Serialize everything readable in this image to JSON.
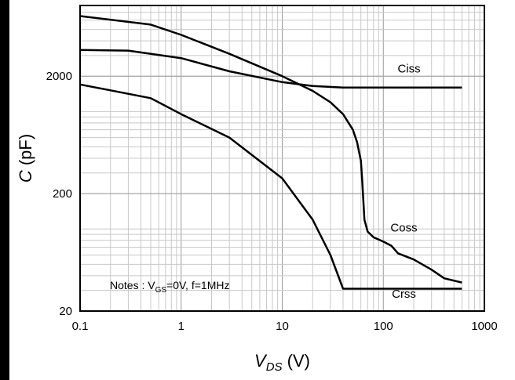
{
  "chart_data": {
    "type": "line",
    "x_scale": "log",
    "y_scale": "log",
    "xlim": [
      0.1,
      1000
    ],
    "ylim": [
      20,
      8000
    ],
    "grid": true,
    "x_ticks": [
      {
        "value": 0.1,
        "label": "0.1"
      },
      {
        "value": 1,
        "label": "1"
      },
      {
        "value": 10,
        "label": "10"
      },
      {
        "value": 100,
        "label": "100"
      },
      {
        "value": 1000,
        "label": "1000"
      }
    ],
    "y_ticks": [
      {
        "value": 20,
        "label": "20"
      },
      {
        "value": 200,
        "label": "200"
      },
      {
        "value": 2000,
        "label": "2000"
      }
    ],
    "xlabel": {
      "main": "V",
      "sub": "DS",
      "unit": " (V)"
    },
    "ylabel": {
      "main": "C",
      "unit": " (pF)"
    },
    "note": {
      "prefix": "Notes : V",
      "sub": "GS",
      "suffix": "=0V, f=1MHz"
    },
    "series": [
      {
        "name": "Ciss",
        "points": [
          [
            0.1,
            3350
          ],
          [
            0.3,
            3300
          ],
          [
            1,
            2850
          ],
          [
            3,
            2200
          ],
          [
            10,
            1780
          ],
          [
            20,
            1650
          ],
          [
            40,
            1600
          ],
          [
            100,
            1600
          ],
          [
            600,
            1600
          ]
        ]
      },
      {
        "name": "Coss",
        "points": [
          [
            0.1,
            6500
          ],
          [
            0.5,
            5500
          ],
          [
            1,
            4500
          ],
          [
            3,
            3100
          ],
          [
            10,
            2000
          ],
          [
            20,
            1500
          ],
          [
            30,
            1200
          ],
          [
            40,
            950
          ],
          [
            50,
            700
          ],
          [
            55,
            550
          ],
          [
            60,
            380
          ],
          [
            62,
            250
          ],
          [
            65,
            120
          ],
          [
            70,
            95
          ],
          [
            80,
            85
          ],
          [
            100,
            78
          ],
          [
            120,
            72
          ],
          [
            140,
            62
          ],
          [
            200,
            55
          ],
          [
            300,
            45
          ],
          [
            400,
            38
          ],
          [
            600,
            35
          ]
        ]
      },
      {
        "name": "Crss",
        "points": [
          [
            0.1,
            1700
          ],
          [
            0.5,
            1300
          ],
          [
            1,
            950
          ],
          [
            3,
            600
          ],
          [
            10,
            270
          ],
          [
            20,
            120
          ],
          [
            30,
            60
          ],
          [
            40,
            31
          ],
          [
            100,
            31
          ],
          [
            600,
            31
          ]
        ]
      }
    ],
    "series_labels": [
      {
        "name": "Ciss",
        "at": [
          180,
          2150
        ]
      },
      {
        "name": "Coss",
        "at": [
          160,
          95
        ]
      },
      {
        "name": "Crss",
        "at": [
          160,
          26
        ]
      }
    ]
  }
}
